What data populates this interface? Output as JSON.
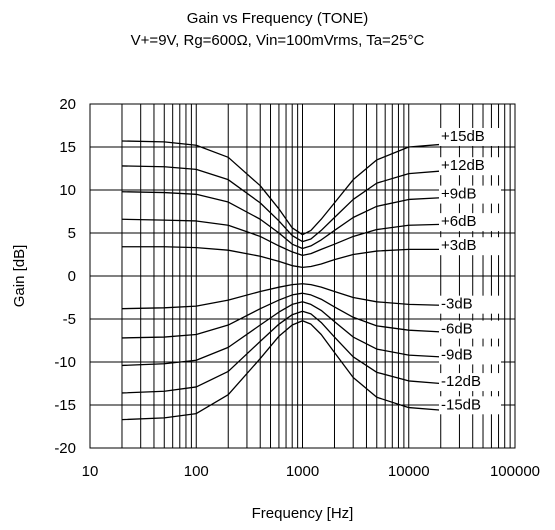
{
  "chart_data": {
    "type": "line",
    "title": "Gain vs Frequency (TONE)",
    "subtitle": "V+=9V, Rg=600Ω, Vin=100mVrms, Ta=25°C",
    "xlabel": "Frequency [Hz]",
    "ylabel": "Gain [dB]",
    "x_scale": "log",
    "xlim": [
      10,
      100000
    ],
    "ylim": [
      -20,
      20
    ],
    "grid": true,
    "x_ticks": [
      "10",
      "100",
      "1000",
      "10000",
      "100000"
    ],
    "y_ticks": [
      "20",
      "15",
      "10",
      "5",
      "0",
      "-5",
      "-10",
      "-15",
      "-20"
    ],
    "series": [
      {
        "name": "+15dB",
        "x": [
          20,
          50,
          100,
          200,
          400,
          600,
          800,
          1000,
          1200,
          1500,
          2000,
          3000,
          5000,
          10000,
          20000
        ],
        "y": [
          15.7,
          15.6,
          15.2,
          13.8,
          10.5,
          7.8,
          5.6,
          4.8,
          5.3,
          6.6,
          8.5,
          11.2,
          13.5,
          15.0,
          15.3
        ]
      },
      {
        "name": "+12dB",
        "x": [
          20,
          50,
          100,
          200,
          400,
          600,
          800,
          1000,
          1200,
          1500,
          2000,
          3000,
          5000,
          10000,
          20000
        ],
        "y": [
          12.8,
          12.7,
          12.4,
          11.2,
          8.5,
          6.4,
          4.7,
          4.0,
          4.3,
          5.3,
          6.8,
          8.9,
          10.8,
          11.9,
          12.2
        ]
      },
      {
        "name": "+9dB",
        "x": [
          20,
          50,
          100,
          200,
          400,
          600,
          800,
          1000,
          1200,
          1500,
          2000,
          3000,
          5000,
          10000,
          20000
        ],
        "y": [
          9.8,
          9.7,
          9.5,
          8.6,
          6.6,
          5.0,
          3.7,
          3.2,
          3.5,
          4.2,
          5.3,
          6.8,
          8.1,
          8.9,
          9.1
        ]
      },
      {
        "name": "+6dB",
        "x": [
          20,
          50,
          100,
          200,
          400,
          600,
          800,
          1000,
          1200,
          1500,
          2000,
          3000,
          5000,
          10000,
          20000
        ],
        "y": [
          6.6,
          6.5,
          6.4,
          5.9,
          4.6,
          3.5,
          2.8,
          2.4,
          2.6,
          3.1,
          3.7,
          4.6,
          5.4,
          5.9,
          6.0
        ]
      },
      {
        "name": "+3dB",
        "x": [
          20,
          50,
          100,
          200,
          400,
          600,
          800,
          1000,
          1200,
          1500,
          2000,
          3000,
          5000,
          10000,
          20000
        ],
        "y": [
          3.4,
          3.4,
          3.3,
          3.0,
          2.3,
          1.7,
          1.2,
          1.0,
          1.1,
          1.4,
          1.9,
          2.5,
          2.9,
          3.1,
          3.1
        ]
      },
      {
        "name": "-3dB",
        "x": [
          20,
          50,
          100,
          200,
          400,
          600,
          800,
          1000,
          1200,
          1500,
          2000,
          3000,
          5000,
          10000,
          20000
        ],
        "y": [
          -3.8,
          -3.7,
          -3.5,
          -2.8,
          -1.8,
          -1.3,
          -1.0,
          -0.9,
          -1.0,
          -1.3,
          -1.8,
          -2.5,
          -3.0,
          -3.3,
          -3.4
        ]
      },
      {
        "name": "-6dB",
        "x": [
          20,
          50,
          100,
          200,
          400,
          600,
          800,
          1000,
          1200,
          1500,
          2000,
          3000,
          5000,
          10000,
          20000
        ],
        "y": [
          -7.2,
          -7.1,
          -6.8,
          -5.7,
          -3.8,
          -2.8,
          -2.2,
          -2.0,
          -2.2,
          -2.7,
          -3.6,
          -4.8,
          -5.8,
          -6.3,
          -6.5
        ]
      },
      {
        "name": "-9dB",
        "x": [
          20,
          50,
          100,
          200,
          400,
          600,
          800,
          1000,
          1200,
          1500,
          2000,
          3000,
          5000,
          10000,
          20000
        ],
        "y": [
          -10.4,
          -10.2,
          -9.8,
          -8.3,
          -5.7,
          -4.2,
          -3.3,
          -3.0,
          -3.3,
          -4.0,
          -5.3,
          -7.1,
          -8.5,
          -9.2,
          -9.4
        ]
      },
      {
        "name": "-12dB",
        "x": [
          20,
          50,
          100,
          200,
          400,
          600,
          800,
          1000,
          1200,
          1500,
          2000,
          3000,
          5000,
          10000,
          20000
        ],
        "y": [
          -13.6,
          -13.4,
          -12.9,
          -11.1,
          -7.6,
          -5.6,
          -4.5,
          -4.1,
          -4.4,
          -5.4,
          -7.1,
          -9.4,
          -11.2,
          -12.2,
          -12.5
        ]
      },
      {
        "name": "-15dB",
        "x": [
          20,
          50,
          100,
          200,
          400,
          600,
          800,
          1000,
          1200,
          1500,
          2000,
          3000,
          5000,
          10000,
          20000
        ],
        "y": [
          -16.7,
          -16.5,
          -16.0,
          -13.8,
          -9.6,
          -7.0,
          -5.7,
          -5.2,
          -5.6,
          -6.8,
          -8.9,
          -11.8,
          -14.1,
          -15.3,
          -15.6
        ]
      }
    ]
  }
}
